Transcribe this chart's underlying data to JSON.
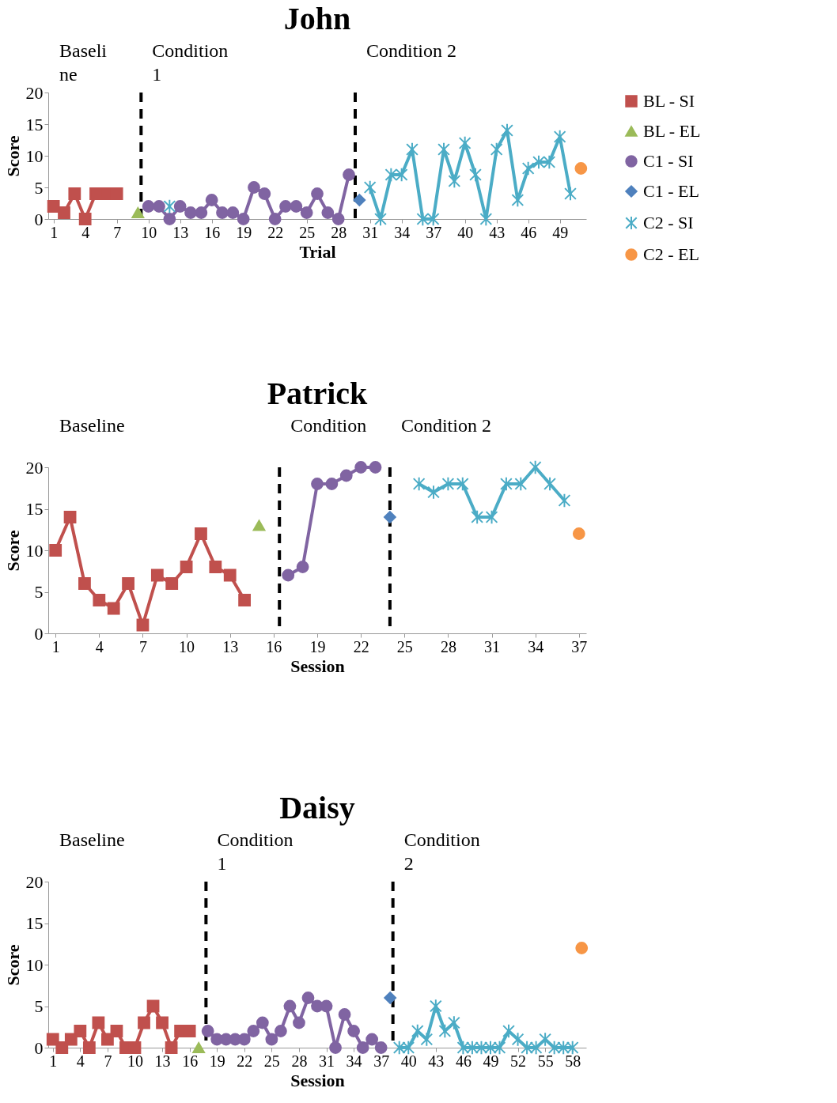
{
  "chart_data": [
    {
      "type": "line",
      "title": "John",
      "xlabel": "Trial",
      "ylabel": "Score",
      "xlim": [
        0.5,
        51.5
      ],
      "xticks": [
        1,
        4,
        7,
        10,
        13,
        16,
        19,
        22,
        25,
        28,
        31,
        34,
        37,
        40,
        43,
        46,
        49
      ],
      "ylim": [
        0,
        20
      ],
      "yticks": [
        0,
        5,
        10,
        15,
        20
      ],
      "legend": "right",
      "line_style": "solid",
      "series": [
        {
          "name": "BL - SI",
          "color": "#c0504d",
          "marker": "square",
          "x": [
            1,
            2,
            3,
            4,
            5,
            6,
            7
          ],
          "values": [
            2,
            1,
            4,
            0,
            4,
            4,
            4
          ]
        },
        {
          "name": "BL - EL",
          "color": "#9bbb59",
          "marker": "triangle",
          "x": [
            9
          ],
          "values": [
            1
          ]
        },
        {
          "name": "C1 - SI",
          "color": "#8064a2",
          "marker": "circle",
          "x": [
            10,
            11,
            12,
            13,
            14,
            15,
            16,
            17,
            18,
            19,
            20,
            21,
            22,
            23,
            24,
            25,
            26,
            27,
            28,
            29
          ],
          "values": [
            2,
            2,
            0,
            2,
            1,
            1,
            3,
            1,
            1,
            0,
            5,
            4,
            0,
            2,
            2,
            1,
            4,
            1,
            0,
            7
          ]
        },
        {
          "name": "C1 - EL",
          "color": "#4f81bd",
          "marker": "diamond",
          "x": [
            30
          ],
          "values": [
            3
          ]
        },
        {
          "name": "C2 - SI",
          "color": "#4bacc6",
          "marker": "cross",
          "x": [
            12,
            13,
            31,
            32,
            33,
            34,
            35,
            36,
            37,
            38,
            39,
            40,
            41,
            42,
            43,
            44,
            45,
            46,
            47,
            48,
            49,
            50
          ],
          "values": [
            2,
            null,
            5,
            0,
            7,
            7,
            11,
            0,
            0,
            11,
            6,
            12,
            7,
            0,
            11,
            14,
            3,
            8,
            9,
            9,
            13,
            4
          ]
        },
        {
          "name": "C2 - EL",
          "color": "#f79646",
          "marker": "circle",
          "x": [
            51
          ],
          "values": [
            8
          ]
        }
      ],
      "ref_lines": [
        {
          "axis": "x",
          "value": 9.3,
          "color": "#000000",
          "line_style": "dashed"
        },
        {
          "axis": "x",
          "value": 29.6,
          "color": "#000000",
          "line_style": "dashed"
        }
      ],
      "annotations": [
        "Baseli\nne",
        "Condition\n1",
        "Condition 2"
      ]
    },
    {
      "type": "line",
      "title": "Patrick",
      "xlabel": "Session",
      "ylabel": "Score",
      "xlim": [
        0.5,
        37.5
      ],
      "xticks": [
        1,
        4,
        7,
        10,
        13,
        16,
        19,
        22,
        25,
        28,
        31,
        34,
        37
      ],
      "ylim": [
        0,
        20
      ],
      "yticks": [
        0,
        5,
        10,
        15,
        20
      ],
      "legend": "right",
      "line_style": "solid",
      "series": [
        {
          "name": "BL - SI",
          "color": "#c0504d",
          "marker": "square",
          "x": [
            1,
            2,
            3,
            4,
            5,
            6,
            7,
            8,
            9,
            10,
            11,
            12,
            13,
            14
          ],
          "values": [
            10,
            14,
            6,
            4,
            3,
            6,
            1,
            7,
            6,
            8,
            12,
            8,
            7,
            4
          ]
        },
        {
          "name": "BL - EL",
          "color": "#9bbb59",
          "marker": "triangle",
          "x": [
            15
          ],
          "values": [
            13
          ]
        },
        {
          "name": "C1 - SI",
          "color": "#8064a2",
          "marker": "circle",
          "x": [
            17,
            18,
            19,
            20,
            21,
            22,
            23
          ],
          "values": [
            7,
            8,
            18,
            18,
            19,
            20,
            20
          ]
        },
        {
          "name": "C1 - EL",
          "color": "#4f81bd",
          "marker": "diamond",
          "x": [
            24
          ],
          "values": [
            14
          ]
        },
        {
          "name": "C2 - SI",
          "color": "#4bacc6",
          "marker": "cross",
          "x": [
            26,
            27,
            28,
            29,
            30,
            31,
            32,
            33,
            34,
            35,
            36
          ],
          "values": [
            18,
            17,
            18,
            18,
            14,
            14,
            18,
            18,
            20,
            18,
            16
          ]
        },
        {
          "name": "C2 - EL",
          "color": "#f79646",
          "marker": "circle",
          "x": [
            37
          ],
          "values": [
            12
          ]
        }
      ],
      "ref_lines": [
        {
          "axis": "x",
          "value": 16.4,
          "color": "#000000",
          "line_style": "dashed"
        },
        {
          "axis": "x",
          "value": 24,
          "color": "#000000",
          "line_style": "dashed"
        }
      ],
      "annotations": [
        "Baseline",
        "Condition",
        "Condition 2"
      ]
    },
    {
      "type": "line",
      "title": "Daisy",
      "xlabel": "Session",
      "ylabel": "Score",
      "xlim": [
        0.5,
        59.5
      ],
      "xticks": [
        1,
        4,
        7,
        10,
        13,
        16,
        19,
        22,
        25,
        28,
        31,
        34,
        37,
        40,
        43,
        46,
        49,
        52,
        55,
        58
      ],
      "ylim": [
        0,
        20
      ],
      "yticks": [
        0,
        5,
        10,
        15,
        20
      ],
      "legend": "right",
      "line_style": "solid",
      "series": [
        {
          "name": "BL - SI",
          "color": "#c0504d",
          "marker": "square",
          "x": [
            1,
            2,
            3,
            4,
            5,
            6,
            7,
            8,
            9,
            10,
            11,
            12,
            13,
            14,
            15,
            16
          ],
          "values": [
            1,
            0,
            1,
            2,
            0,
            3,
            1,
            2,
            0,
            0,
            3,
            5,
            3,
            0,
            2,
            2
          ]
        },
        {
          "name": "BL - EL",
          "color": "#9bbb59",
          "marker": "triangle",
          "x": [
            17
          ],
          "values": [
            0
          ]
        },
        {
          "name": "C1 - SI",
          "color": "#8064a2",
          "marker": "circle",
          "x": [
            18,
            19,
            20,
            21,
            22,
            23,
            24,
            25,
            26,
            27,
            28,
            29,
            30,
            31,
            32,
            33,
            34,
            35,
            36,
            37
          ],
          "values": [
            2,
            1,
            1,
            1,
            1,
            2,
            3,
            1,
            2,
            5,
            3,
            6,
            5,
            5,
            0,
            4,
            2,
            0,
            1,
            0
          ]
        },
        {
          "name": "C1 - EL",
          "color": "#4f81bd",
          "marker": "diamond",
          "x": [
            38
          ],
          "values": [
            6
          ]
        },
        {
          "name": "C2 - SI",
          "color": "#4bacc6",
          "marker": "cross",
          "x": [
            39,
            40,
            41,
            42,
            43,
            44,
            45,
            46,
            47,
            48,
            49,
            50,
            51,
            52,
            53,
            54,
            55,
            56,
            57,
            58
          ],
          "values": [
            0,
            0,
            2,
            1,
            5,
            2,
            3,
            0,
            0,
            0,
            0,
            0,
            2,
            1,
            0,
            0,
            1,
            0,
            0,
            0
          ]
        },
        {
          "name": "C2 - EL",
          "color": "#f79646",
          "marker": "circle",
          "x": [
            59
          ],
          "values": [
            12
          ]
        }
      ],
      "ref_lines": [
        {
          "axis": "x",
          "value": 17.8,
          "color": "#000000",
          "line_style": "dashed"
        },
        {
          "axis": "x",
          "value": 38.3,
          "color": "#000000",
          "line_style": "dashed"
        }
      ],
      "annotations": [
        "Baseline",
        "Condition\n1",
        "Condition\n2"
      ]
    }
  ]
}
